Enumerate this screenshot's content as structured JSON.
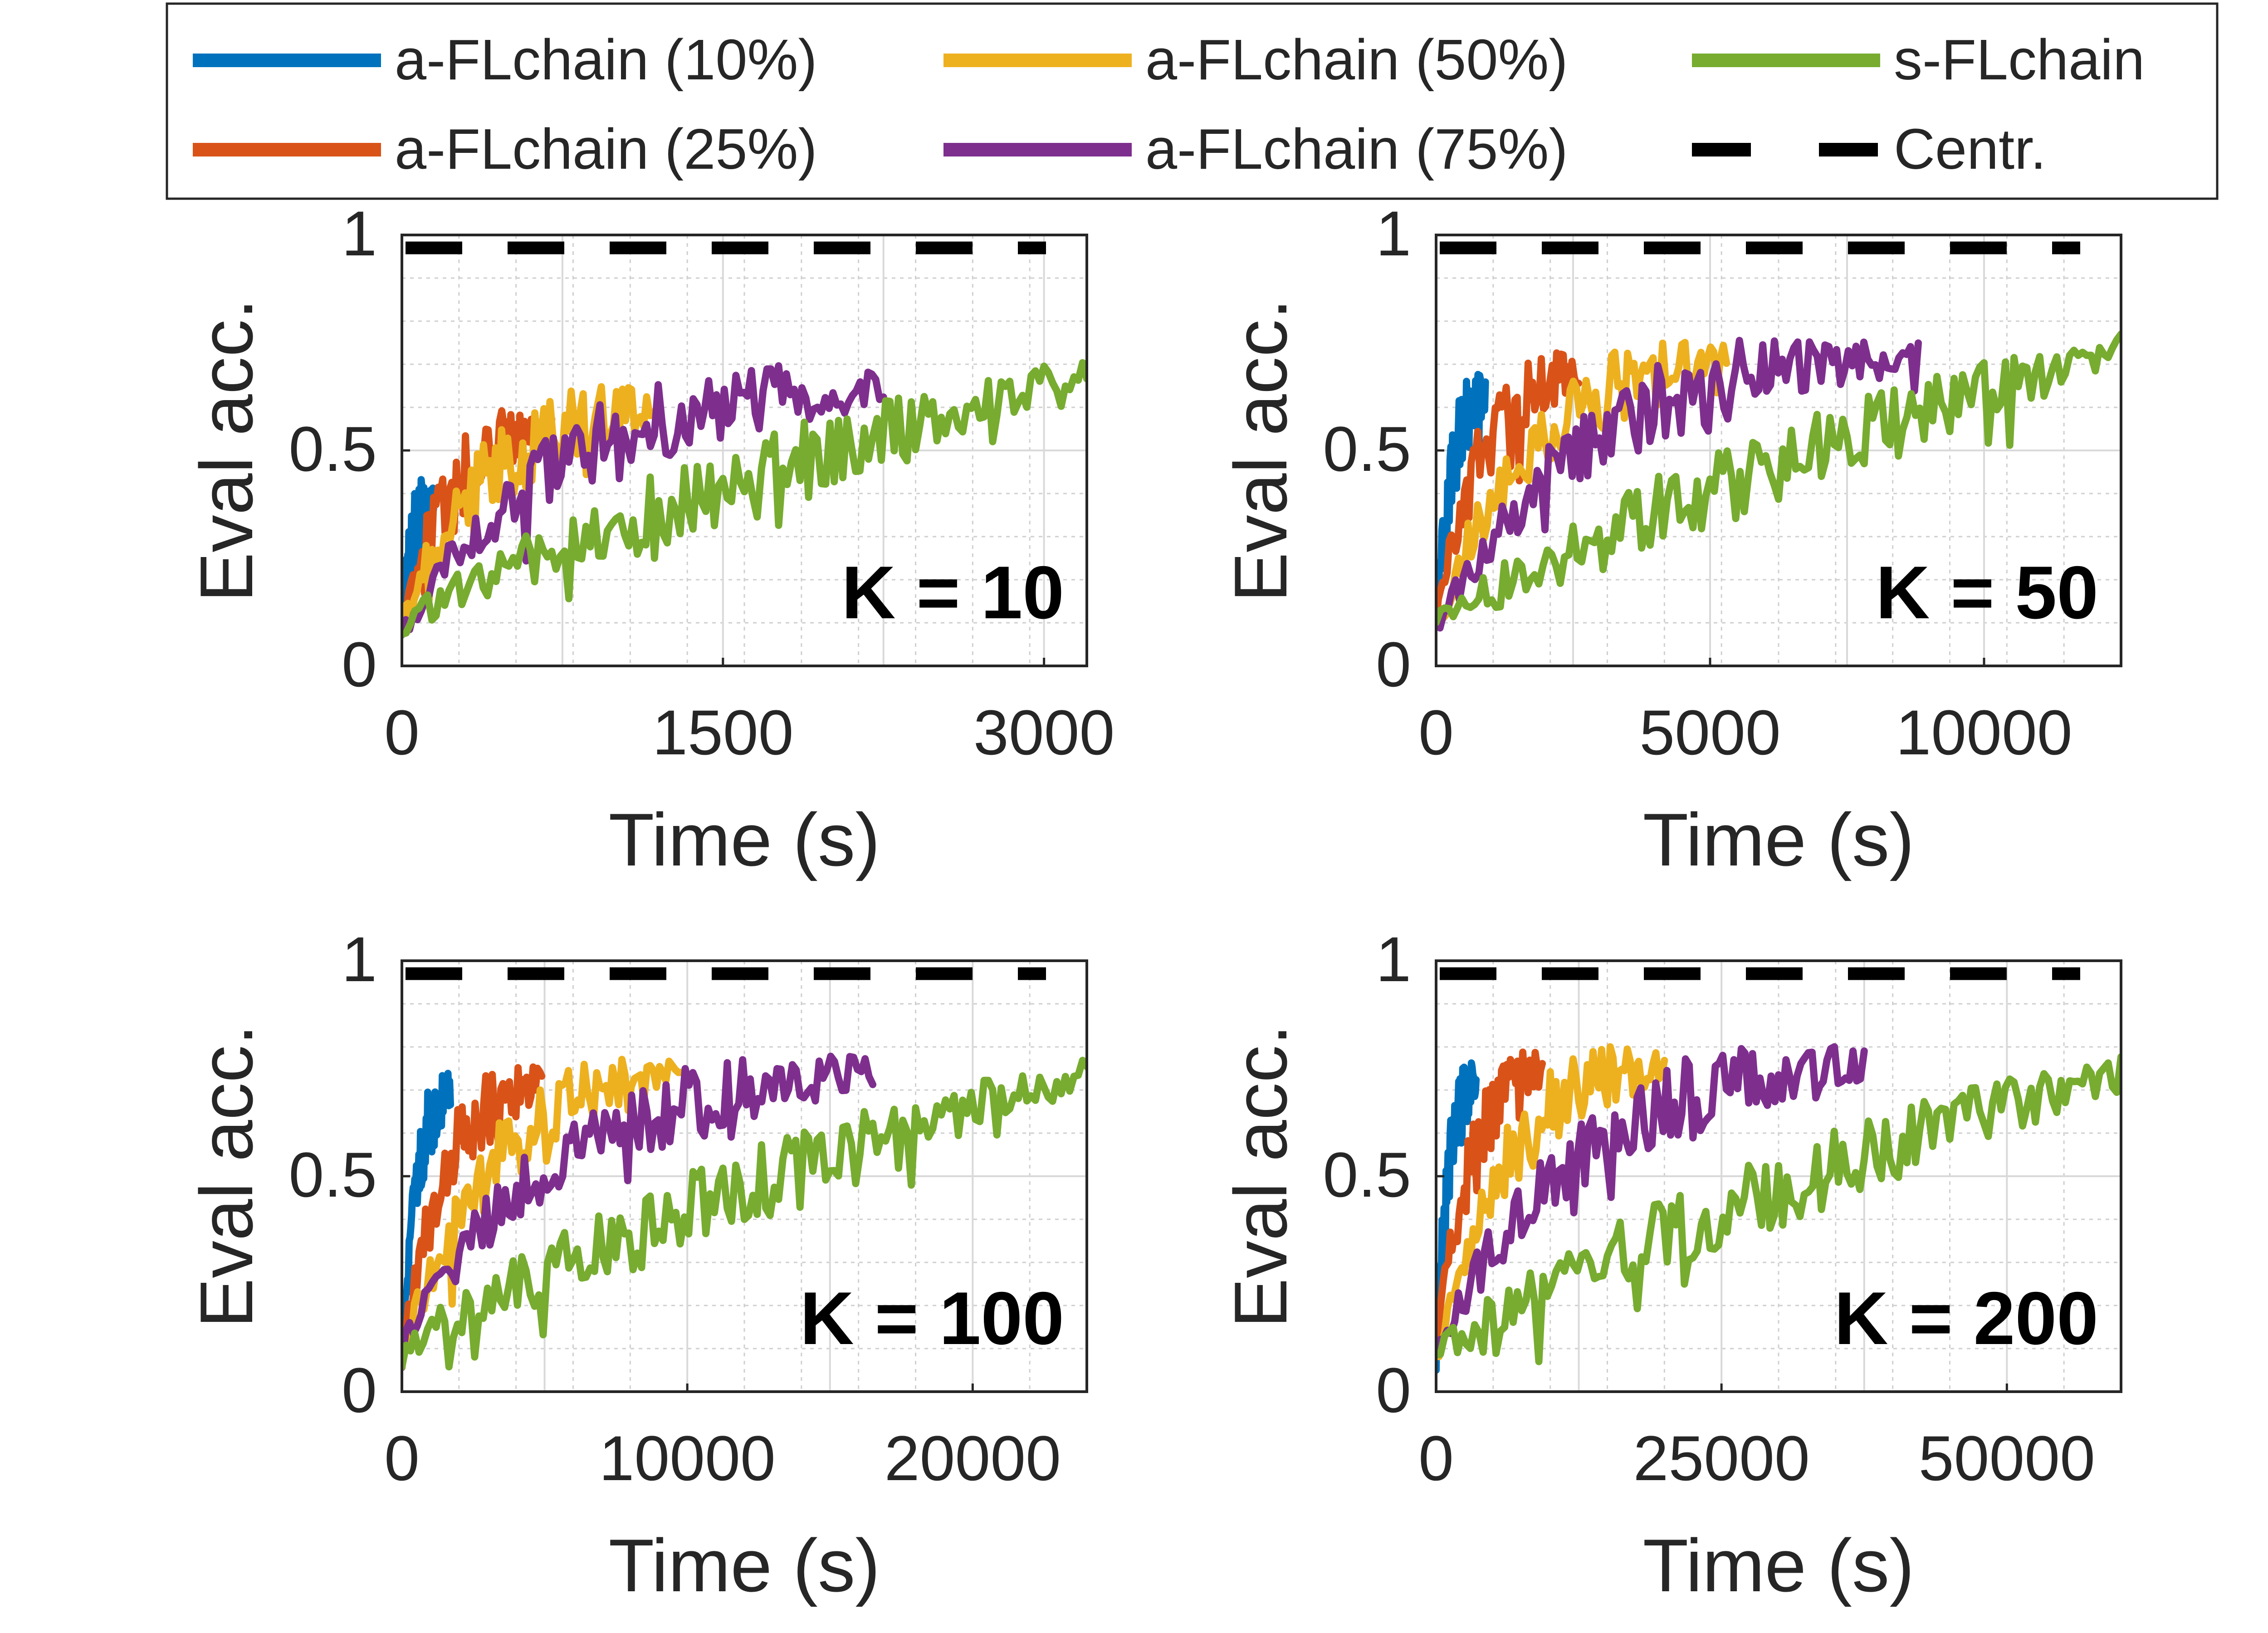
{
  "legend": {
    "entries": [
      {
        "label": "a-FLchain (10%)",
        "color": "#0072BD",
        "style": "solid"
      },
      {
        "label": "a-FLchain (50%)",
        "color": "#EDB120",
        "style": "solid"
      },
      {
        "label": "s-FLchain",
        "color": "#77AC30",
        "style": "solid"
      },
      {
        "label": "a-FLchain (25%)",
        "color": "#D95319",
        "style": "solid"
      },
      {
        "label": "a-FLchain (75%)",
        "color": "#7E2F8E",
        "style": "dashed-none"
      },
      {
        "label": "Centr.",
        "color": "#000000",
        "style": "dashed"
      }
    ]
  },
  "chart_data": [
    {
      "type": "line",
      "annotation": "K = 10",
      "xlabel": "Time (s)",
      "ylabel": "Eval acc.",
      "xlim": [
        0,
        3200
      ],
      "ylim": [
        0,
        1
      ],
      "xticks": [
        0,
        1500,
        3000
      ],
      "xtick_labels": [
        "0",
        "1500",
        "3000"
      ],
      "yticks": [
        0,
        0.5,
        1
      ],
      "ytick_labels": [
        "0",
        "0.5",
        "1"
      ],
      "grid": true,
      "centralized": 0.97,
      "series": [
        {
          "name": "a-FLchain (10%)",
          "color": "#0072BD",
          "end_x": 150,
          "end_y": 0.38
        },
        {
          "name": "a-FLchain (25%)",
          "color": "#D95319",
          "end_x": 700,
          "end_y": 0.55
        },
        {
          "name": "a-FLchain (50%)",
          "color": "#EDB120",
          "end_x": 1200,
          "end_y": 0.6
        },
        {
          "name": "a-FLchain (75%)",
          "color": "#7E2F8E",
          "end_x": 2250,
          "end_y": 0.65
        },
        {
          "name": "s-FLchain",
          "color": "#77AC30",
          "end_x": 3200,
          "end_y": 0.68
        }
      ]
    },
    {
      "type": "line",
      "annotation": "K = 50",
      "xlabel": "Time (s)",
      "ylabel": "Eval acc.",
      "xlim": [
        0,
        12500
      ],
      "ylim": [
        0,
        1
      ],
      "xticks": [
        0,
        5000,
        10000
      ],
      "xtick_labels": [
        "0",
        "5000",
        "10000"
      ],
      "yticks": [
        0,
        0.5,
        1
      ],
      "ytick_labels": [
        "0",
        "0.5",
        "1"
      ],
      "grid": true,
      "centralized": 0.97,
      "series": [
        {
          "name": "a-FLchain (10%)",
          "color": "#0072BD",
          "end_x": 900,
          "end_y": 0.63
        },
        {
          "name": "a-FLchain (25%)",
          "color": "#D95319",
          "end_x": 2600,
          "end_y": 0.68
        },
        {
          "name": "a-FLchain (50%)",
          "color": "#EDB120",
          "end_x": 5300,
          "end_y": 0.71
        },
        {
          "name": "a-FLchain (75%)",
          "color": "#7E2F8E",
          "end_x": 8800,
          "end_y": 0.73
        },
        {
          "name": "s-FLchain",
          "color": "#77AC30",
          "end_x": 12500,
          "end_y": 0.74
        }
      ]
    },
    {
      "type": "line",
      "annotation": "K = 100",
      "xlabel": "Time (s)",
      "ylabel": "Eval acc.",
      "xlim": [
        0,
        24000
      ],
      "ylim": [
        0,
        1
      ],
      "xticks": [
        0,
        10000,
        20000
      ],
      "xtick_labels": [
        "0",
        "10000",
        "20000"
      ],
      "yticks": [
        0,
        0.5,
        1
      ],
      "ytick_labels": [
        "0",
        "0.5",
        "1"
      ],
      "grid": true,
      "centralized": 0.97,
      "series": [
        {
          "name": "a-FLchain (10%)",
          "color": "#0072BD",
          "end_x": 1700,
          "end_y": 0.7
        },
        {
          "name": "a-FLchain (25%)",
          "color": "#D95319",
          "end_x": 4900,
          "end_y": 0.72
        },
        {
          "name": "a-FLchain (50%)",
          "color": "#EDB120",
          "end_x": 9800,
          "end_y": 0.73
        },
        {
          "name": "a-FLchain (75%)",
          "color": "#7E2F8E",
          "end_x": 16500,
          "end_y": 0.74
        },
        {
          "name": "s-FLchain",
          "color": "#77AC30",
          "end_x": 24000,
          "end_y": 0.74
        }
      ]
    },
    {
      "type": "line",
      "annotation": "K = 200",
      "xlabel": "Time (s)",
      "ylabel": "Eval acc.",
      "xlim": [
        0,
        60000
      ],
      "ylim": [
        0,
        1
      ],
      "xticks": [
        0,
        25000,
        50000
      ],
      "xtick_labels": [
        "0",
        "25000",
        "50000"
      ],
      "yticks": [
        0,
        0.5,
        1
      ],
      "ytick_labels": [
        "0",
        "0.5",
        "1"
      ],
      "grid": true,
      "centralized": 0.97,
      "series": [
        {
          "name": "a-FLchain (10%)",
          "color": "#0072BD",
          "end_x": 3500,
          "end_y": 0.72
        },
        {
          "name": "a-FLchain (25%)",
          "color": "#D95319",
          "end_x": 9300,
          "end_y": 0.75
        },
        {
          "name": "a-FLchain (50%)",
          "color": "#EDB120",
          "end_x": 20000,
          "end_y": 0.76
        },
        {
          "name": "a-FLchain (75%)",
          "color": "#7E2F8E",
          "end_x": 37500,
          "end_y": 0.76
        },
        {
          "name": "s-FLchain",
          "color": "#77AC30",
          "end_x": 60000,
          "end_y": 0.75
        }
      ]
    }
  ]
}
